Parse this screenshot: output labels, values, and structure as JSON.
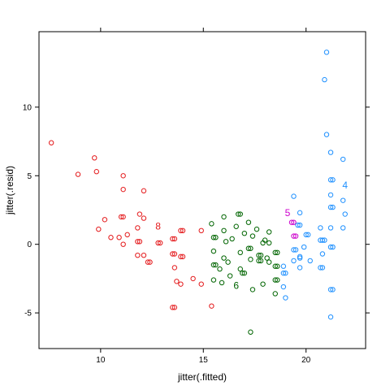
{
  "chart_data": {
    "type": "scatter",
    "xlabel": "jitter(.fitted)",
    "ylabel": "jitter(.resid)",
    "xlim": [
      7.0,
      22.9
    ],
    "ylim": [
      -7.6,
      15.5
    ],
    "x_ticks": [
      {
        "value": 10,
        "label": "10"
      },
      {
        "value": 15,
        "label": "15"
      },
      {
        "value": 20,
        "label": "20"
      }
    ],
    "y_ticks": [
      {
        "value": -5,
        "label": "-5"
      },
      {
        "value": 0,
        "label": "0"
      },
      {
        "value": 5,
        "label": "5"
      },
      {
        "value": 10,
        "label": "10"
      }
    ],
    "grid": false,
    "series": [
      {
        "color": "#e41a1c",
        "label": {
          "text": "8",
          "x": 12.8,
          "y": 1.3
        },
        "points": [
          [
            7.6,
            7.4
          ],
          [
            8.9,
            5.1
          ],
          [
            9.7,
            6.3
          ],
          [
            9.8,
            5.3
          ],
          [
            11.1,
            5.0
          ],
          [
            11.1,
            4.0
          ],
          [
            12.1,
            3.9
          ],
          [
            9.9,
            1.1
          ],
          [
            10.2,
            1.8
          ],
          [
            10.5,
            0.5
          ],
          [
            10.9,
            0.5
          ],
          [
            11.0,
            2.0
          ],
          [
            11.1,
            2.0
          ],
          [
            11.1,
            0.0
          ],
          [
            11.3,
            0.7
          ],
          [
            11.8,
            1.2
          ],
          [
            11.8,
            0.2
          ],
          [
            11.9,
            0.2
          ],
          [
            11.9,
            2.2
          ],
          [
            12.1,
            1.9
          ],
          [
            12.1,
            -0.8
          ],
          [
            11.8,
            -0.8
          ],
          [
            12.3,
            -1.3
          ],
          [
            12.4,
            -1.3
          ],
          [
            12.8,
            0.1
          ],
          [
            12.9,
            0.1
          ],
          [
            13.5,
            0.4
          ],
          [
            13.6,
            0.4
          ],
          [
            13.5,
            -0.7
          ],
          [
            13.6,
            -0.7
          ],
          [
            13.9,
            1.0
          ],
          [
            14.0,
            1.0
          ],
          [
            13.9,
            -0.9
          ],
          [
            14.0,
            -0.9
          ],
          [
            13.6,
            -1.7
          ],
          [
            13.7,
            -2.7
          ],
          [
            13.9,
            -2.9
          ],
          [
            14.5,
            -2.5
          ],
          [
            14.9,
            -2.9
          ],
          [
            14.9,
            1.0
          ],
          [
            13.5,
            -4.6
          ],
          [
            13.6,
            -4.6
          ],
          [
            15.4,
            -4.5
          ]
        ]
      },
      {
        "color": "#006400",
        "label": {
          "text": "6",
          "x": 16.6,
          "y": -3.0
        },
        "points": [
          [
            15.4,
            1.5
          ],
          [
            15.5,
            0.5
          ],
          [
            15.6,
            0.5
          ],
          [
            15.5,
            -0.5
          ],
          [
            15.5,
            -1.5
          ],
          [
            15.6,
            -1.5
          ],
          [
            15.5,
            -2.6
          ],
          [
            15.8,
            -1.8
          ],
          [
            15.9,
            -2.8
          ],
          [
            16.0,
            2.0
          ],
          [
            16.0,
            1.0
          ],
          [
            16.1,
            0.2
          ],
          [
            16.0,
            -1.0
          ],
          [
            16.2,
            -1.3
          ],
          [
            16.3,
            -2.3
          ],
          [
            16.4,
            0.4
          ],
          [
            16.6,
            1.3
          ],
          [
            16.7,
            2.2
          ],
          [
            16.8,
            2.2
          ],
          [
            16.8,
            -0.6
          ],
          [
            16.8,
            -1.8
          ],
          [
            16.9,
            -2.1
          ],
          [
            17.0,
            -2.1
          ],
          [
            17.0,
            0.8
          ],
          [
            17.2,
            1.6
          ],
          [
            17.2,
            -0.3
          ],
          [
            17.3,
            -0.3
          ],
          [
            17.3,
            -1.1
          ],
          [
            17.4,
            0.6
          ],
          [
            17.4,
            -3.3
          ],
          [
            17.3,
            -6.4
          ],
          [
            17.6,
            1.1
          ],
          [
            17.7,
            -0.8
          ],
          [
            17.8,
            -0.8
          ],
          [
            17.7,
            -1.2
          ],
          [
            17.8,
            -1.2
          ],
          [
            17.9,
            0.1
          ],
          [
            17.9,
            -2.9
          ],
          [
            18.0,
            0.3
          ],
          [
            18.1,
            -1.0
          ],
          [
            18.2,
            -1.3
          ],
          [
            18.2,
            0.1
          ],
          [
            18.5,
            -0.6
          ],
          [
            18.6,
            -0.6
          ],
          [
            18.5,
            -1.6
          ],
          [
            18.6,
            -1.6
          ],
          [
            18.5,
            -2.6
          ],
          [
            18.6,
            -2.6
          ],
          [
            18.5,
            -3.6
          ],
          [
            18.2,
            0.9
          ]
        ]
      },
      {
        "color": "#cc00cc",
        "label": {
          "text": "5",
          "x": 19.1,
          "y": 2.3
        },
        "points": [
          [
            19.3,
            1.6
          ],
          [
            19.4,
            1.6
          ],
          [
            19.4,
            0.6
          ],
          [
            19.5,
            0.6
          ]
        ]
      },
      {
        "color": "#1e90ff",
        "label": {
          "text": "4",
          "x": 21.9,
          "y": 4.3
        },
        "points": [
          [
            21.0,
            14.0
          ],
          [
            20.9,
            12.0
          ],
          [
            21.0,
            8.0
          ],
          [
            21.2,
            6.7
          ],
          [
            21.8,
            6.2
          ],
          [
            21.2,
            4.7
          ],
          [
            21.3,
            4.7
          ],
          [
            21.2,
            3.6
          ],
          [
            21.8,
            3.2
          ],
          [
            21.2,
            2.7
          ],
          [
            21.3,
            2.7
          ],
          [
            21.9,
            2.2
          ],
          [
            21.2,
            1.2
          ],
          [
            21.8,
            1.2
          ],
          [
            20.7,
            1.2
          ],
          [
            20.8,
            0.3
          ],
          [
            20.9,
            0.3
          ],
          [
            21.2,
            -0.2
          ],
          [
            21.3,
            -0.2
          ],
          [
            20.8,
            -0.7
          ],
          [
            20.7,
            -1.7
          ],
          [
            20.8,
            -1.7
          ],
          [
            21.2,
            -3.3
          ],
          [
            21.3,
            -3.3
          ],
          [
            21.2,
            -5.3
          ],
          [
            19.4,
            3.5
          ],
          [
            19.7,
            2.3
          ],
          [
            19.6,
            1.4
          ],
          [
            19.7,
            1.4
          ],
          [
            19.4,
            -0.4
          ],
          [
            19.5,
            -0.4
          ],
          [
            19.7,
            -0.9
          ],
          [
            19.4,
            -1.2
          ],
          [
            19.7,
            -1.7
          ],
          [
            19.9,
            -0.2
          ],
          [
            20.0,
            0.7
          ],
          [
            20.1,
            0.7
          ],
          [
            20.2,
            -1.2
          ],
          [
            18.9,
            -3.1
          ],
          [
            19.0,
            -3.9
          ],
          [
            18.9,
            -1.6
          ],
          [
            18.9,
            -2.1
          ],
          [
            19.0,
            -2.1
          ],
          [
            19.7,
            -1.0
          ],
          [
            20.7,
            0.3
          ]
        ]
      }
    ]
  }
}
